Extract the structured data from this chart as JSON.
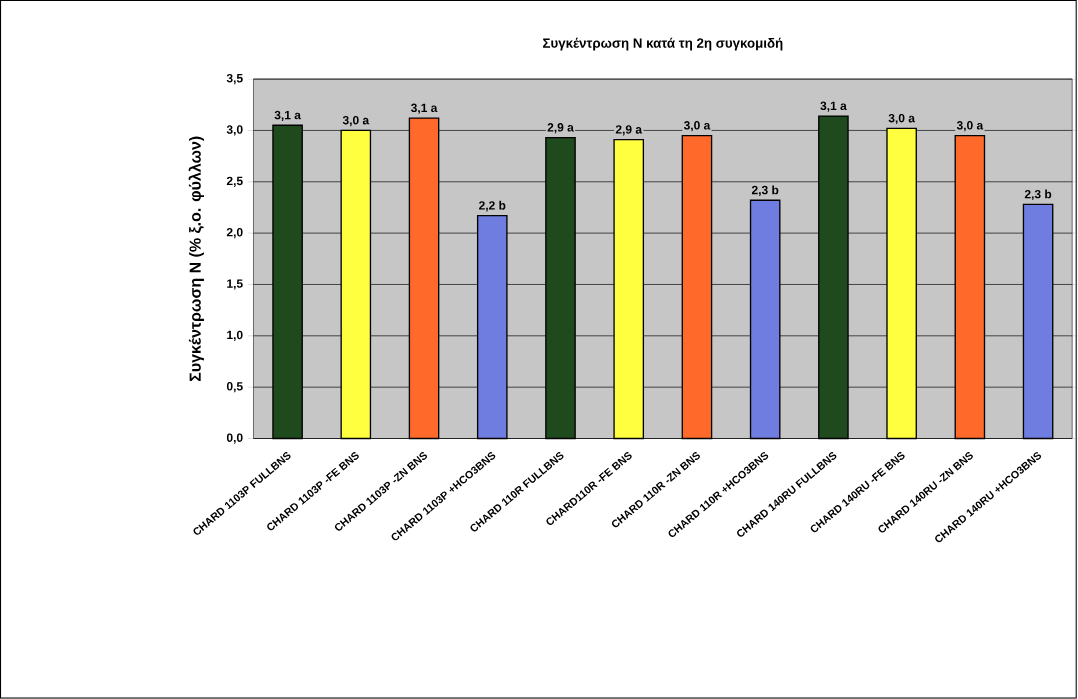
{
  "chart_data": {
    "type": "bar",
    "title": "Συγκέντρωση N κατά τη 2η συγκομιδή",
    "ylabel": "Συγκέντρωση N (% ξ.ο. φύλλων)",
    "categories": [
      "CHARD 1103P  FULLBNS",
      "CHARD 1103P  -FE BNS",
      "CHARD 1103P  -ZN BNS",
      "CHARD 1103P  +HCO3BNS",
      "CHARD 110R  FULLBNS",
      "CHARD110R   -FE BNS",
      "CHARD 110R  -ZN BNS",
      "CHARD 110R  +HCO3BNS",
      "CHARD 140RU  FULLBNS",
      "CHARD 140RU  -FE BNS",
      "CHARD 140RU  -ZN BNS",
      "CHARD 140RU  +HCO3BNS"
    ],
    "values": [
      3.05,
      3.0,
      3.12,
      2.17,
      2.93,
      2.91,
      2.95,
      2.32,
      3.14,
      3.02,
      2.95,
      2.28
    ],
    "value_labels": [
      "3,1 a",
      "3,0 a",
      "3,1 a",
      "2,2 b",
      "2,9 a",
      "2,9 a",
      "3,0 a",
      "2,3 b",
      "3,1 a",
      "3,0 a",
      "3,0 a",
      "2,3 b"
    ],
    "colors": [
      "#1e4a1e",
      "#ffff40",
      "#ff6a2a",
      "#6f7de0",
      "#1e4a1e",
      "#ffff40",
      "#ff6a2a",
      "#6f7de0",
      "#1e4a1e",
      "#ffff40",
      "#ff6a2a",
      "#6f7de0"
    ],
    "ylim": [
      0,
      3.5
    ],
    "yticks": [
      {
        "value": 0,
        "label": "0,0"
      },
      {
        "value": 0.5,
        "label": "0,5"
      },
      {
        "value": 1,
        "label": "1,0"
      },
      {
        "value": 1.5,
        "label": "1,5"
      },
      {
        "value": 2,
        "label": "2,0"
      },
      {
        "value": 2.5,
        "label": "2,5"
      },
      {
        "value": 3,
        "label": "3,0"
      },
      {
        "value": 3.5,
        "label": "3,5"
      }
    ],
    "grid": "y"
  }
}
